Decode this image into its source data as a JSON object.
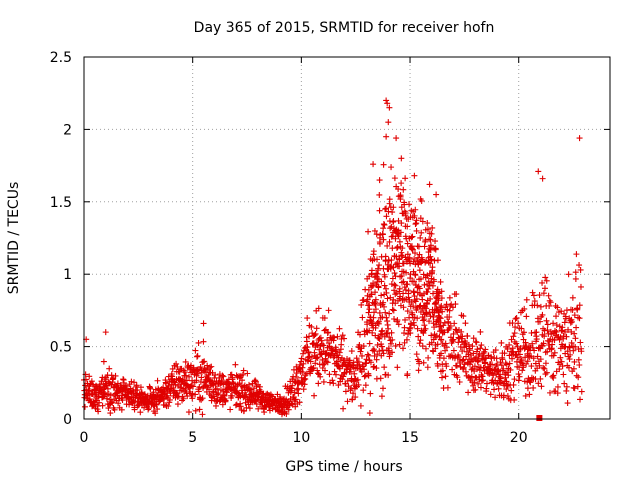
{
  "chart_data": {
    "type": "scatter",
    "title": "Day 365 of 2015, SRMTID for receiver hofn",
    "xlabel": "GPS time / hours",
    "ylabel": "SRMTID / TECUs",
    "xlim": [
      0,
      24.2
    ],
    "ylim": [
      0,
      2.5
    ],
    "x_ticks": [
      0,
      5,
      10,
      15,
      20
    ],
    "x_tick_labels": [
      "0",
      "5",
      "10",
      "15",
      "20"
    ],
    "y_ticks": [
      0,
      0.5,
      1,
      1.5,
      2,
      2.5
    ],
    "y_tick_labels": [
      "0",
      "0.5",
      "1",
      "1.5",
      "2",
      "2.5"
    ],
    "grid": true,
    "marker": "plus",
    "color": "#e00000",
    "extra_marker": {
      "x": 20.95,
      "y": 0.0,
      "shape": "square"
    },
    "envelope_note": "dense noisy time series; points summarized by approximate hourly profile",
    "series": [
      {
        "name": "SRMTID",
        "profile_x": [
          0,
          0.5,
          1,
          1.5,
          2,
          2.5,
          3,
          3.5,
          4,
          4.5,
          5,
          5.5,
          6,
          6.5,
          7,
          7.5,
          8,
          8.5,
          9,
          9.5,
          10,
          10.5,
          11,
          11.5,
          12,
          12.5,
          13,
          13.5,
          14,
          14.5,
          15,
          15.5,
          16,
          16.5,
          17,
          17.5,
          18,
          18.5,
          19,
          19.5,
          20,
          20.5,
          21,
          21.5,
          22,
          22.5
        ],
        "profile_y": [
          0.2,
          0.15,
          0.25,
          0.18,
          0.16,
          0.14,
          0.13,
          0.15,
          0.22,
          0.25,
          0.28,
          0.3,
          0.22,
          0.2,
          0.21,
          0.18,
          0.15,
          0.12,
          0.1,
          0.15,
          0.35,
          0.45,
          0.5,
          0.42,
          0.35,
          0.25,
          0.6,
          0.85,
          1.0,
          1.1,
          1.0,
          0.9,
          0.95,
          0.6,
          0.55,
          0.45,
          0.4,
          0.35,
          0.3,
          0.35,
          0.55,
          0.45,
          0.6,
          0.55,
          0.5,
          0.6
        ],
        "profile_spread": [
          0.12,
          0.08,
          0.15,
          0.1,
          0.08,
          0.07,
          0.06,
          0.08,
          0.12,
          0.14,
          0.16,
          0.18,
          0.12,
          0.1,
          0.12,
          0.1,
          0.08,
          0.06,
          0.05,
          0.1,
          0.18,
          0.22,
          0.22,
          0.2,
          0.18,
          0.15,
          0.4,
          0.55,
          0.6,
          0.55,
          0.5,
          0.45,
          0.45,
          0.3,
          0.25,
          0.2,
          0.18,
          0.15,
          0.15,
          0.2,
          0.3,
          0.3,
          0.4,
          0.35,
          0.35,
          0.35
        ],
        "peaks": [
          {
            "x": 13.9,
            "y": 2.2
          },
          {
            "x": 13.95,
            "y": 2.18
          },
          {
            "x": 14.05,
            "y": 2.15
          },
          {
            "x": 14.0,
            "y": 2.05
          },
          {
            "x": 13.9,
            "y": 1.95
          },
          {
            "x": 22.8,
            "y": 1.94
          },
          {
            "x": 20.9,
            "y": 1.71
          },
          {
            "x": 21.1,
            "y": 1.66
          },
          {
            "x": 13.3,
            "y": 1.76
          },
          {
            "x": 15.2,
            "y": 1.68
          },
          {
            "x": 15.9,
            "y": 1.62
          },
          {
            "x": 16.2,
            "y": 1.55
          },
          {
            "x": 14.6,
            "y": 1.8
          },
          {
            "x": 13.6,
            "y": 1.65
          },
          {
            "x": 5.5,
            "y": 0.66
          },
          {
            "x": 1.0,
            "y": 0.6
          },
          {
            "x": 0.1,
            "y": 0.55
          }
        ]
      }
    ]
  }
}
